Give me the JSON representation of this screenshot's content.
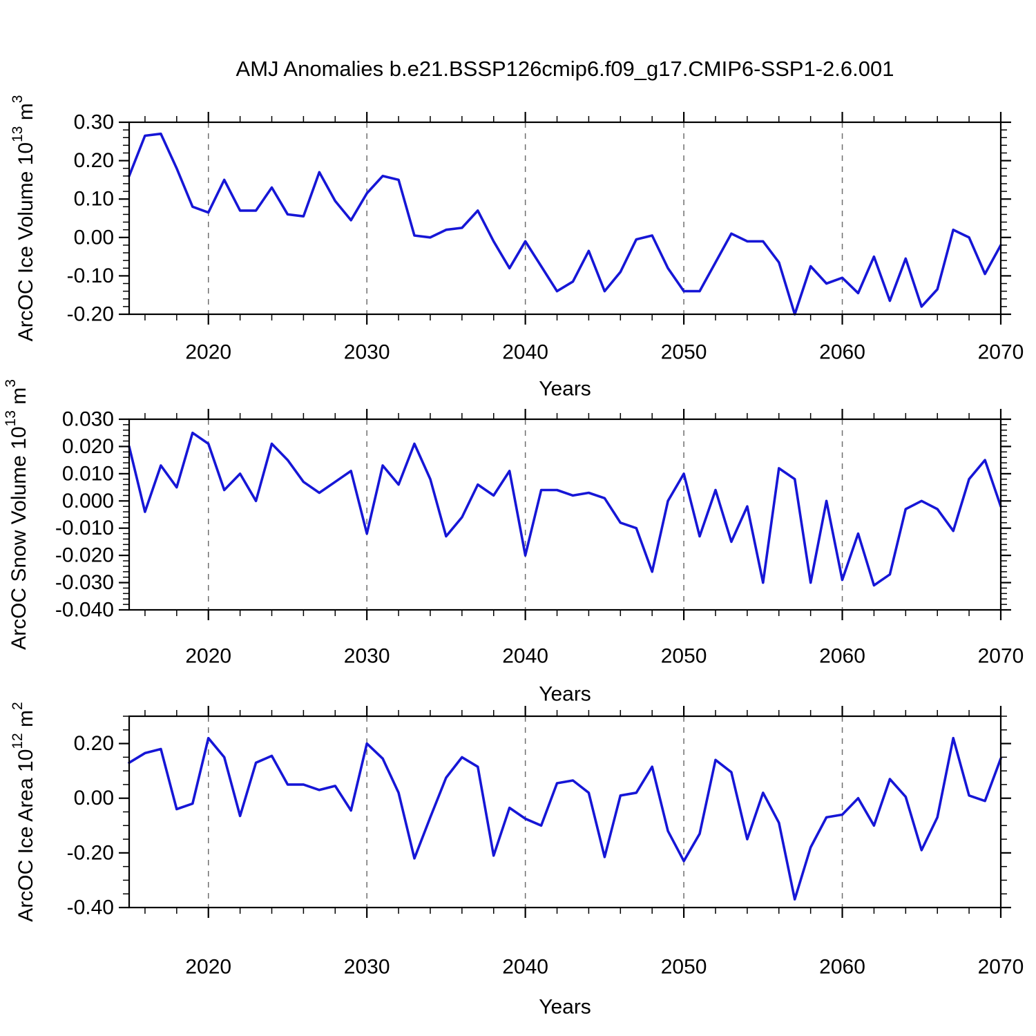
{
  "title": "AMJ Anomalies b.e21.BSSP126cmip6.f09_g17.CMIP6-SSP1-2.6.001",
  "style": {
    "background": "#ffffff",
    "line_color": "#1616d6",
    "grid_color": "#6e6e6e",
    "axis_color": "#000000"
  },
  "xlabel": "Years",
  "chart_data": [
    {
      "type": "line",
      "name": "ice-volume",
      "ylabel": "ArcOC Ice Volume 10^13 m^3",
      "xlabel": "Years",
      "x_start": 2015,
      "x_step": 1,
      "x_end": 2070,
      "ylim": [
        -0.2,
        0.3
      ],
      "x_major_ticks": [
        2020,
        2030,
        2040,
        2050,
        2060,
        2070
      ],
      "x_tick_labels": [
        "2020",
        "2030",
        "2040",
        "2050",
        "2060",
        "2070"
      ],
      "x_minor_step": 2,
      "grid_x": [
        2020,
        2030,
        2040,
        2050,
        2060
      ],
      "y_major_ticks": [
        0.3,
        0.2,
        0.1,
        0.0,
        -0.1,
        -0.2
      ],
      "y_tick_labels": [
        "0.30",
        "0.20",
        "0.10",
        "0.00",
        "-0.10",
        "-0.20"
      ],
      "y_minor_step": 0.02,
      "values": [
        0.16,
        0.265,
        0.27,
        0.18,
        0.08,
        0.065,
        0.15,
        0.07,
        0.07,
        0.13,
        0.06,
        0.055,
        0.17,
        0.095,
        0.045,
        0.115,
        0.16,
        0.15,
        0.005,
        0.0,
        0.02,
        0.025,
        0.07,
        -0.01,
        -0.08,
        -0.01,
        -0.075,
        -0.14,
        -0.115,
        -0.035,
        -0.14,
        -0.09,
        -0.005,
        0.005,
        -0.08,
        -0.14,
        -0.14,
        -0.065,
        0.01,
        -0.01,
        -0.01,
        -0.065,
        -0.2,
        -0.075,
        -0.12,
        -0.105,
        -0.145,
        -0.05,
        -0.165,
        -0.055,
        -0.18,
        -0.135,
        0.02,
        0.0,
        -0.095,
        -0.02
      ]
    },
    {
      "type": "line",
      "name": "snow-volume",
      "ylabel": "ArcOC Snow Volume 10^13 m^3",
      "xlabel": "Years",
      "x_start": 2015,
      "x_step": 1,
      "x_end": 2070,
      "ylim": [
        -0.04,
        0.03
      ],
      "x_major_ticks": [
        2020,
        2030,
        2040,
        2050,
        2060,
        2070
      ],
      "x_tick_labels": [
        "2020",
        "2030",
        "2040",
        "2050",
        "2060",
        "2070"
      ],
      "x_minor_step": 2,
      "grid_x": [
        2020,
        2030,
        2040,
        2050,
        2060
      ],
      "y_major_ticks": [
        0.03,
        0.02,
        0.01,
        0.0,
        -0.01,
        -0.02,
        -0.03,
        -0.04
      ],
      "y_tick_labels": [
        "0.030",
        "0.020",
        "0.010",
        "0.000",
        "-0.010",
        "-0.020",
        "-0.030",
        "-0.040"
      ],
      "y_minor_step": 0.002,
      "values": [
        0.02,
        -0.004,
        0.013,
        0.005,
        0.025,
        0.021,
        0.004,
        0.01,
        0.0,
        0.021,
        0.015,
        0.007,
        0.003,
        0.007,
        0.011,
        -0.012,
        0.013,
        0.006,
        0.021,
        0.008,
        -0.013,
        -0.006,
        0.006,
        0.002,
        0.011,
        -0.02,
        0.004,
        0.004,
        0.002,
        0.003,
        0.001,
        -0.008,
        -0.01,
        -0.026,
        0.0,
        0.01,
        -0.013,
        0.004,
        -0.015,
        -0.002,
        -0.03,
        0.012,
        0.008,
        -0.03,
        0.0,
        -0.029,
        -0.012,
        -0.031,
        -0.027,
        -0.003,
        0.0,
        -0.003,
        -0.011,
        0.008,
        0.015,
        -0.002
      ]
    },
    {
      "type": "line",
      "name": "ice-area",
      "ylabel": "ArcOC Ice Area 10^12 m^2",
      "xlabel": "Years",
      "x_start": 2015,
      "x_step": 1,
      "x_end": 2070,
      "ylim": [
        -0.4,
        0.3
      ],
      "x_major_ticks": [
        2020,
        2030,
        2040,
        2050,
        2060,
        2070
      ],
      "x_tick_labels": [
        "2020",
        "2030",
        "2040",
        "2050",
        "2060",
        "2070"
      ],
      "x_minor_step": 2,
      "grid_x": [
        2020,
        2030,
        2040,
        2050,
        2060
      ],
      "y_major_ticks": [
        0.2,
        0.0,
        -0.2,
        -0.4
      ],
      "y_tick_labels": [
        "0.20",
        "0.00",
        "-0.20",
        "-0.40"
      ],
      "y_minor_step": 0.05,
      "values": [
        0.13,
        0.165,
        0.18,
        -0.04,
        -0.02,
        0.22,
        0.15,
        -0.065,
        0.13,
        0.155,
        0.05,
        0.05,
        0.03,
        0.045,
        -0.045,
        0.2,
        0.145,
        0.02,
        -0.22,
        -0.07,
        0.075,
        0.15,
        0.115,
        -0.21,
        -0.035,
        -0.075,
        -0.1,
        0.055,
        0.065,
        0.02,
        -0.215,
        0.01,
        0.02,
        0.115,
        -0.12,
        -0.23,
        -0.13,
        0.14,
        0.095,
        -0.15,
        0.02,
        -0.09,
        -0.37,
        -0.18,
        -0.07,
        -0.06,
        0.0,
        -0.1,
        0.07,
        0.005,
        -0.19,
        -0.07,
        0.22,
        0.01,
        -0.01,
        0.145
      ]
    }
  ]
}
